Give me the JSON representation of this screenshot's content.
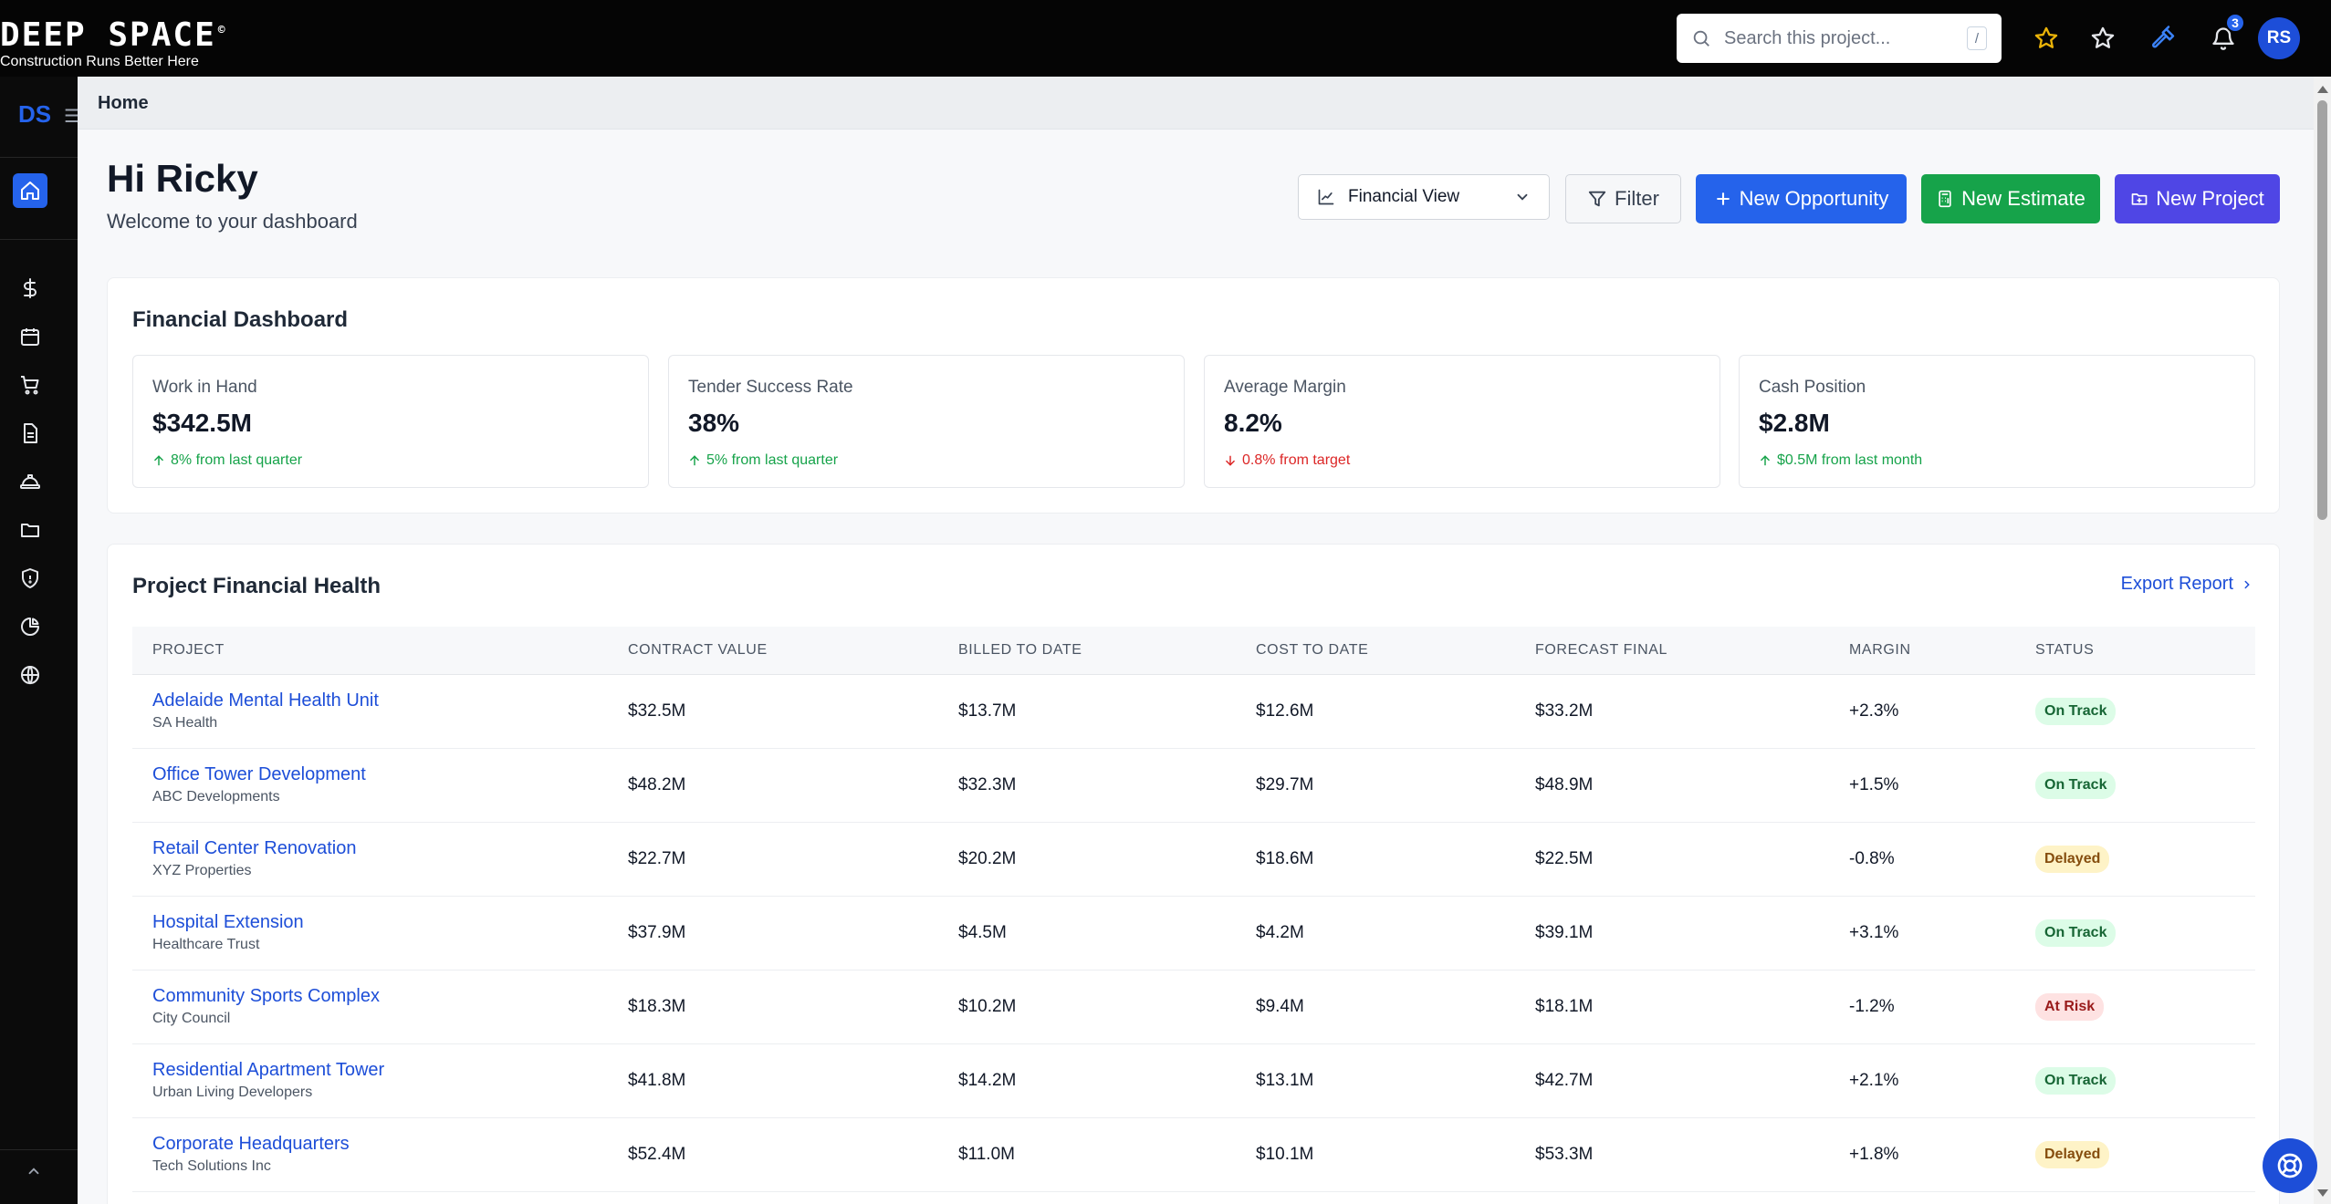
{
  "brand": {
    "logo_text": "DEEP SPACE",
    "tagline": "Construction Runs Better Here",
    "reg_mark": "©",
    "sidebar_abbr": "DS"
  },
  "search": {
    "placeholder": "Search this project...",
    "shortcut": "/"
  },
  "topbar": {
    "notification_count": "3",
    "user_initials": "RS"
  },
  "breadcrumb": "Home",
  "greeting": {
    "title": "Hi Ricky",
    "subtitle": "Welcome to your dashboard"
  },
  "actions": {
    "view_select": "Financial View",
    "filter": "Filter",
    "new_opportunity": "New Opportunity",
    "new_estimate": "New Estimate",
    "new_project": "New Project"
  },
  "financial": {
    "title": "Financial Dashboard",
    "metrics": [
      {
        "label": "Work in Hand",
        "value": "$342.5M",
        "change": "8% from last quarter",
        "direction": "up"
      },
      {
        "label": "Tender Success Rate",
        "value": "38%",
        "change": "5% from last quarter",
        "direction": "up"
      },
      {
        "label": "Average Margin",
        "value": "8.2%",
        "change": "0.8% from target",
        "direction": "down"
      },
      {
        "label": "Cash Position",
        "value": "$2.8M",
        "change": "$0.5M from last month",
        "direction": "up"
      }
    ]
  },
  "health": {
    "title": "Project Financial Health",
    "export_label": "Export Report",
    "columns": [
      "PROJECT",
      "CONTRACT VALUE",
      "BILLED TO DATE",
      "COST TO DATE",
      "FORECAST FINAL",
      "MARGIN",
      "STATUS"
    ],
    "rows": [
      {
        "name": "Adelaide Mental Health Unit",
        "client": "SA Health",
        "contract": "$32.5M",
        "billed": "$13.7M",
        "cost": "$12.6M",
        "forecast": "$33.2M",
        "margin": "+2.3%",
        "status": "On Track"
      },
      {
        "name": "Office Tower Development",
        "client": "ABC Developments",
        "contract": "$48.2M",
        "billed": "$32.3M",
        "cost": "$29.7M",
        "forecast": "$48.9M",
        "margin": "+1.5%",
        "status": "On Track"
      },
      {
        "name": "Retail Center Renovation",
        "client": "XYZ Properties",
        "contract": "$22.7M",
        "billed": "$20.2M",
        "cost": "$18.6M",
        "forecast": "$22.5M",
        "margin": "-0.8%",
        "status": "Delayed"
      },
      {
        "name": "Hospital Extension",
        "client": "Healthcare Trust",
        "contract": "$37.9M",
        "billed": "$4.5M",
        "cost": "$4.2M",
        "forecast": "$39.1M",
        "margin": "+3.1%",
        "status": "On Track"
      },
      {
        "name": "Community Sports Complex",
        "client": "City Council",
        "contract": "$18.3M",
        "billed": "$10.2M",
        "cost": "$9.4M",
        "forecast": "$18.1M",
        "margin": "-1.2%",
        "status": "At Risk"
      },
      {
        "name": "Residential Apartment Tower",
        "client": "Urban Living Developers",
        "contract": "$41.8M",
        "billed": "$14.2M",
        "cost": "$13.1M",
        "forecast": "$42.7M",
        "margin": "+2.1%",
        "status": "On Track"
      },
      {
        "name": "Corporate Headquarters",
        "client": "Tech Solutions Inc",
        "contract": "$52.4M",
        "billed": "$11.0M",
        "cost": "$10.1M",
        "forecast": "$53.3M",
        "margin": "+1.8%",
        "status": "Delayed"
      }
    ]
  },
  "sidebar_icons": [
    "home-icon",
    "dollar-icon",
    "calendar-icon",
    "cart-icon",
    "document-icon",
    "hardhat-icon",
    "folder-icon",
    "shield-icon",
    "pie-chart-icon",
    "globe-icon"
  ],
  "colors": {
    "primary": "#2563eb",
    "success": "#16a34a",
    "indigo": "#4f46e5",
    "danger": "#dc2626",
    "star_accent": "#eab308"
  }
}
